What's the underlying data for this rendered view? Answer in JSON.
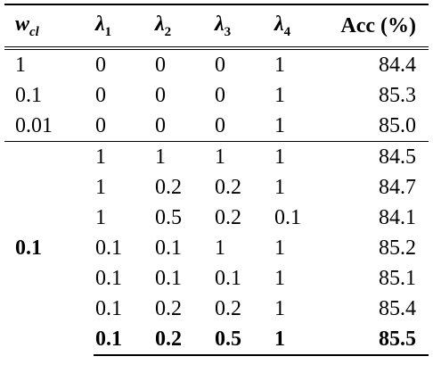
{
  "header": {
    "wcl": "w",
    "wcl_sub": "cl",
    "l1": "λ",
    "l1_sub": "1",
    "l2": "λ",
    "l2_sub": "2",
    "l3": "λ",
    "l3_sub": "3",
    "l4": "λ",
    "l4_sub": "4",
    "acc": "Acc (%)"
  },
  "group1": [
    {
      "wcl": "1",
      "l1": "0",
      "l2": "0",
      "l3": "0",
      "l4": "1",
      "acc": "84.4"
    },
    {
      "wcl": "0.1",
      "l1": "0",
      "l2": "0",
      "l3": "0",
      "l4": "1",
      "acc": "85.3"
    },
    {
      "wcl": "0.01",
      "l1": "0",
      "l2": "0",
      "l3": "0",
      "l4": "1",
      "acc": "85.0"
    }
  ],
  "group2_wcl": "0.1",
  "group2": [
    {
      "l1": "1",
      "l2": "1",
      "l3": "1",
      "l4": "1",
      "acc": "84.5"
    },
    {
      "l1": "1",
      "l2": "0.2",
      "l3": "0.2",
      "l4": "1",
      "acc": "84.7"
    },
    {
      "l1": "1",
      "l2": "0.5",
      "l3": "0.2",
      "l4": "0.1",
      "acc": "84.1"
    },
    {
      "l1": "0.1",
      "l2": "0.1",
      "l3": "1",
      "l4": "1",
      "acc": "85.2"
    },
    {
      "l1": "0.1",
      "l2": "0.1",
      "l3": "0.1",
      "l4": "1",
      "acc": "85.1"
    },
    {
      "l1": "0.1",
      "l2": "0.2",
      "l3": "0.2",
      "l4": "1",
      "acc": "85.4"
    },
    {
      "l1": "0.1",
      "l2": "0.2",
      "l3": "0.5",
      "l4": "1",
      "acc": "85.5"
    }
  ]
}
